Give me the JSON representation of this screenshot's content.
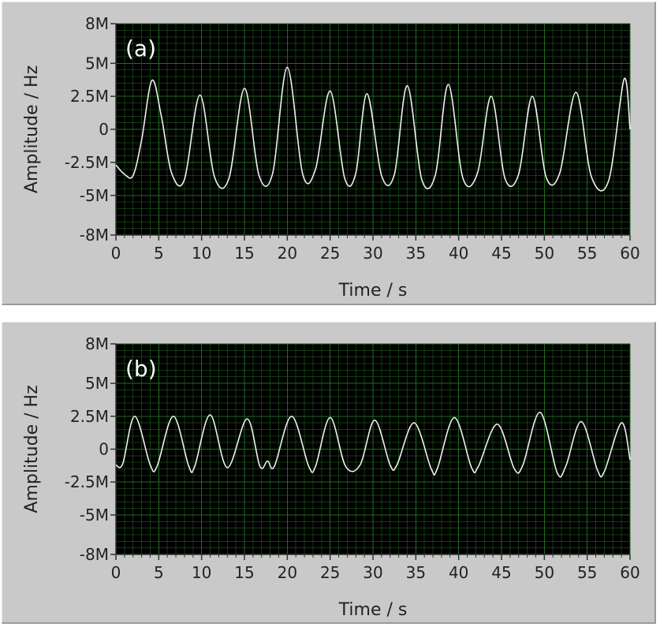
{
  "chart_data": [
    {
      "type": "line",
      "panel_label": "(a)",
      "xlabel": "Time / s",
      "ylabel": "Amplitude / Hz",
      "xlim": [
        0,
        60
      ],
      "ylim": [
        -8000000,
        8000000
      ],
      "x_ticks": [
        0,
        5,
        10,
        15,
        20,
        25,
        30,
        35,
        40,
        45,
        50,
        55,
        60
      ],
      "x_tick_labels": [
        "0",
        "5",
        "10",
        "15",
        "20",
        "25",
        "30",
        "35",
        "40",
        "45",
        "50",
        "55",
        "60"
      ],
      "y_ticks": [
        8000000,
        5000000,
        2500000,
        0,
        -2500000,
        -5000000,
        -8000000
      ],
      "y_tick_labels": [
        "8M",
        "5M",
        "2.5M",
        "0",
        "-2.5M",
        "-5M",
        "-8M"
      ],
      "grid": true,
      "background_color": "#000000",
      "grid_color": "#1f6b1f",
      "line_color": "#f0f0f0",
      "series": [
        {
          "x": [
            0,
            1,
            2,
            3,
            4.2,
            5.3,
            6.5,
            8,
            9.8,
            11.5,
            13.2,
            15,
            16.7,
            18.3,
            20,
            21.8,
            23.3,
            25,
            26.7,
            28,
            29.3,
            31,
            32.5,
            34,
            35.7,
            37.3,
            38.8,
            40.5,
            42.2,
            43.8,
            45.4,
            47,
            48.6,
            50.2,
            51.8,
            53.7,
            55.5,
            57.5,
            59.3,
            60
          ],
          "y": [
            -2700000,
            -3400000,
            -3500000,
            -800000,
            3700000,
            1000000,
            -3300000,
            -3800000,
            2600000,
            -3600000,
            -3700000,
            3100000,
            -3500000,
            -3300000,
            4700000,
            -3400000,
            -3000000,
            2900000,
            -3700000,
            -3300000,
            2700000,
            -3500000,
            -3400000,
            3300000,
            -3800000,
            -3400000,
            3400000,
            -3700000,
            -3300000,
            2500000,
            -3700000,
            -3400000,
            2500000,
            -3600000,
            -3300000,
            2800000,
            -3600000,
            -3900000,
            3800000,
            0
          ]
        }
      ]
    },
    {
      "type": "line",
      "panel_label": "(b)",
      "xlabel": "Time / s",
      "ylabel": "Amplitude / Hz",
      "xlim": [
        0,
        60
      ],
      "ylim": [
        -8000000,
        8000000
      ],
      "x_ticks": [
        0,
        5,
        10,
        15,
        20,
        25,
        30,
        35,
        40,
        45,
        50,
        55,
        60
      ],
      "x_tick_labels": [
        "0",
        "5",
        "10",
        "15",
        "20",
        "25",
        "30",
        "35",
        "40",
        "45",
        "50",
        "55",
        "60"
      ],
      "y_ticks": [
        8000000,
        5000000,
        2500000,
        0,
        -2500000,
        -5000000,
        -8000000
      ],
      "y_tick_labels": [
        "8M",
        "5M",
        "2.5M",
        "0",
        "-2.5M",
        "-5M",
        "-8M"
      ],
      "grid": true,
      "background_color": "#000000",
      "grid_color": "#1f6b1f",
      "line_color": "#f0f0f0",
      "series": [
        {
          "x": [
            0,
            0.8,
            2.2,
            4,
            4.8,
            6.7,
            8.5,
            9.2,
            11,
            13,
            15.3,
            16.8,
            17.7,
            18.5,
            20.5,
            22.5,
            23.3,
            25,
            26.8,
            28.5,
            30.2,
            32,
            32.8,
            34.8,
            36.8,
            37.5,
            39.5,
            41.5,
            42.3,
            44.5,
            46.5,
            47.5,
            49.5,
            51.5,
            52.5,
            54.3,
            56.2,
            57,
            59,
            60
          ],
          "y": [
            -1200000,
            -1100000,
            2500000,
            -1200000,
            -1300000,
            2500000,
            -1300000,
            -1300000,
            2600000,
            -1400000,
            2300000,
            -1300000,
            -900000,
            -1300000,
            2500000,
            -1300000,
            -1300000,
            2400000,
            -1300000,
            -1200000,
            2200000,
            -1200000,
            -1200000,
            2000000,
            -1500000,
            -1500000,
            2400000,
            -1400000,
            -1300000,
            1900000,
            -1500000,
            -1200000,
            2800000,
            -1800000,
            -1300000,
            2100000,
            -1600000,
            -1700000,
            2000000,
            -800000
          ]
        }
      ]
    }
  ]
}
